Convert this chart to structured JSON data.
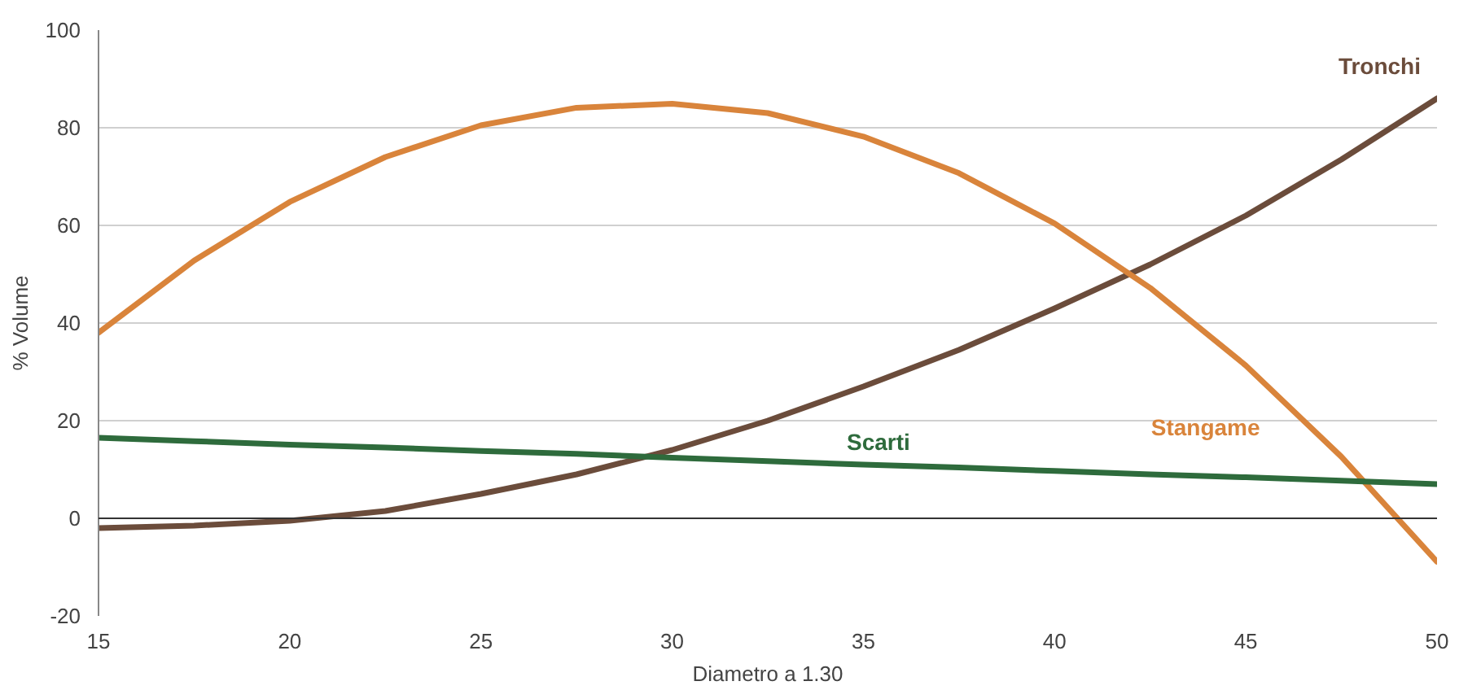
{
  "chart_data": {
    "type": "line",
    "xlabel": "Diametro a 1.30",
    "ylabel": "% Volume",
    "x": [
      15,
      17.5,
      20,
      22.5,
      25,
      27.5,
      30,
      32.5,
      35,
      37.5,
      40,
      42.5,
      45,
      47.5,
      50
    ],
    "series": [
      {
        "name": "Tronchi",
        "color": "#6b4c3b",
        "values": [
          -2,
          -1.5,
          -0.5,
          1.5,
          5,
          9,
          14,
          20,
          27,
          34.5,
          43,
          52,
          62,
          73.5,
          86
        ]
      },
      {
        "name": "Stangame",
        "color": "#d9843b",
        "values": [
          38,
          52.8,
          64.8,
          74,
          80.5,
          84.1,
          84.9,
          83,
          78.2,
          70.7,
          60.4,
          47.2,
          31.3,
          12.6,
          -8.9
        ]
      },
      {
        "name": "Scarti",
        "color": "#2e6b3c",
        "values": [
          16.5,
          15.8,
          15.1,
          14.5,
          13.8,
          13.2,
          12.4,
          11.7,
          11,
          10.4,
          9.7,
          9,
          8.4,
          7.7,
          7
        ]
      }
    ],
    "xlim": [
      15,
      50
    ],
    "ylim": [
      -20,
      100
    ],
    "xticks": [
      15,
      20,
      25,
      30,
      35,
      40,
      45,
      50
    ],
    "yticks": [
      -20,
      0,
      20,
      40,
      60,
      80,
      100
    ],
    "grid": "y",
    "marker": "none",
    "line_style": "solid"
  }
}
